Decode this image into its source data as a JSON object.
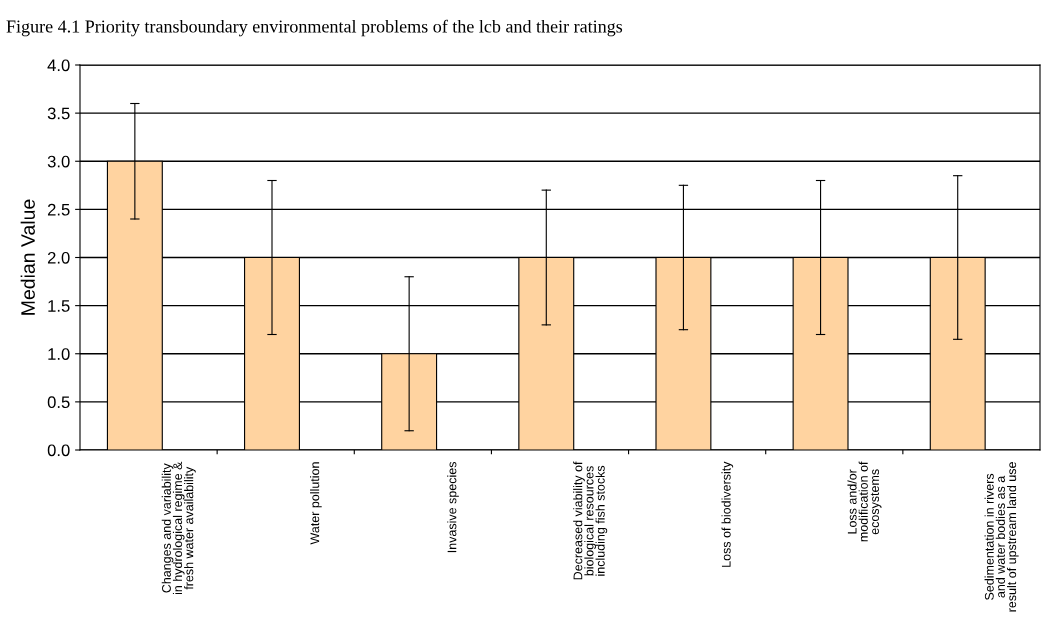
{
  "chart_data": {
    "type": "bar",
    "title": "Figure 4.1 Priority transboundary environmental problems of the lcb and their ratings",
    "ylabel": "Median Value",
    "categories": [
      "Changes and variability\nin hydrological regime &\nfresh water availability",
      "Water pollution",
      "Invasive species",
      "Decreased viability of\nbiological resources\nincluding fish stocks",
      "Loss of biodiversity",
      "Loss and/or\nmodification of\necosystems",
      "Sedimentation in rivers\nand water bodies as a\nresult of upstream land use"
    ],
    "values": [
      3,
      2,
      1,
      2,
      2,
      2,
      2
    ],
    "errors": [
      [
        2.4,
        3.6
      ],
      [
        1.2,
        2.8
      ],
      [
        0.2,
        1.8
      ],
      [
        1.3,
        2.7
      ],
      [
        1.25,
        2.75
      ],
      [
        1.2,
        2.8
      ],
      [
        1.15,
        2.85
      ]
    ],
    "color": "#ffd3a0",
    "ylim": [
      0,
      4
    ],
    "yticks": [
      {
        "value": 0,
        "label": "0.0"
      },
      {
        "value": 0.5,
        "label": "0.5"
      },
      {
        "value": 1,
        "label": "1.0"
      },
      {
        "value": 1.5,
        "label": "1.5"
      },
      {
        "value": 2,
        "label": "2.0"
      },
      {
        "value": 2.5,
        "label": "2.5"
      },
      {
        "value": 3,
        "label": "3.0"
      },
      {
        "value": 3.5,
        "label": "3.5"
      },
      {
        "value": 4,
        "label": "4.0"
      }
    ],
    "grid": "y",
    "legend": false
  }
}
